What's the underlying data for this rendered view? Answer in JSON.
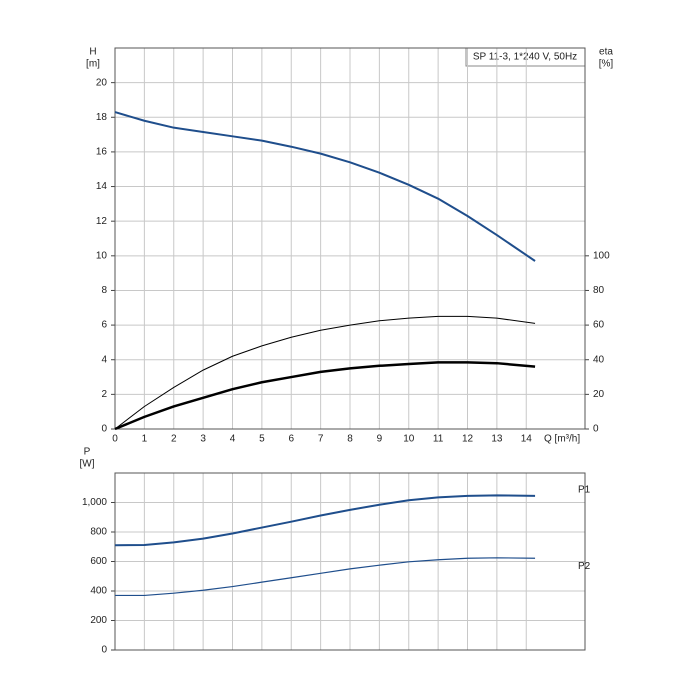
{
  "chart_data": [
    {
      "type": "line",
      "title": "SP 11-3, 1*240 V, 50Hz",
      "ylabel": "H",
      "yunit": "[m]",
      "y2label": "eta",
      "y2unit": "[%]",
      "xlabel": "Q [m³/h]",
      "x": [
        0,
        1,
        2,
        3,
        4,
        5,
        6,
        7,
        8,
        9,
        10,
        11,
        12,
        13,
        14.3
      ],
      "xlim": [
        0,
        16
      ],
      "xticks": [
        0,
        1,
        2,
        3,
        4,
        5,
        6,
        7,
        8,
        9,
        10,
        11,
        12,
        13,
        14
      ],
      "ylim": [
        0,
        22
      ],
      "yticks": [
        0,
        2,
        4,
        6,
        8,
        10,
        12,
        14,
        16,
        18,
        20
      ],
      "y2lim": [
        0,
        220
      ],
      "y2ticks": [
        0,
        20,
        40,
        60,
        80,
        100
      ],
      "grid": true,
      "series": [
        {
          "color": "#1f4e8c",
          "width": 2,
          "values": [
            18.3,
            17.8,
            17.4,
            17.15,
            16.9,
            16.65,
            16.3,
            15.9,
            15.4,
            14.8,
            14.1,
            13.3,
            12.3,
            11.2,
            9.7
          ]
        },
        {
          "color": "#000000",
          "width": 1,
          "axis": "y2",
          "values": [
            0,
            13,
            24,
            34,
            42,
            48,
            53,
            57,
            60,
            62.5,
            64,
            65,
            65,
            64,
            61
          ]
        },
        {
          "color": "#000000",
          "width": 2.5,
          "axis": "y2",
          "values": [
            0,
            7,
            13,
            18,
            23,
            27,
            30,
            33,
            35,
            36.5,
            37.5,
            38.5,
            38.5,
            38,
            36
          ]
        }
      ]
    },
    {
      "type": "line",
      "ylabel": "P",
      "yunit": "[W]",
      "x": [
        0,
        1,
        2,
        3,
        4,
        5,
        6,
        7,
        8,
        9,
        10,
        11,
        12,
        13,
        14.3
      ],
      "xlim": [
        0,
        16
      ],
      "ylim": [
        0,
        1200
      ],
      "yticks": [
        0,
        200,
        400,
        600,
        800,
        {
          "value": 1000,
          "label": "1,000"
        }
      ],
      "grid": true,
      "series": [
        {
          "name": "P1",
          "color": "#1f4e8c",
          "width": 2,
          "values": [
            710,
            712,
            730,
            755,
            790,
            830,
            870,
            912,
            950,
            985,
            1015,
            1035,
            1045,
            1048,
            1045
          ]
        },
        {
          "name": "P2",
          "color": "#1f4e8c",
          "width": 1.2,
          "values": [
            370,
            370,
            385,
            405,
            430,
            460,
            490,
            520,
            550,
            575,
            598,
            612,
            622,
            625,
            622
          ]
        }
      ]
    }
  ]
}
